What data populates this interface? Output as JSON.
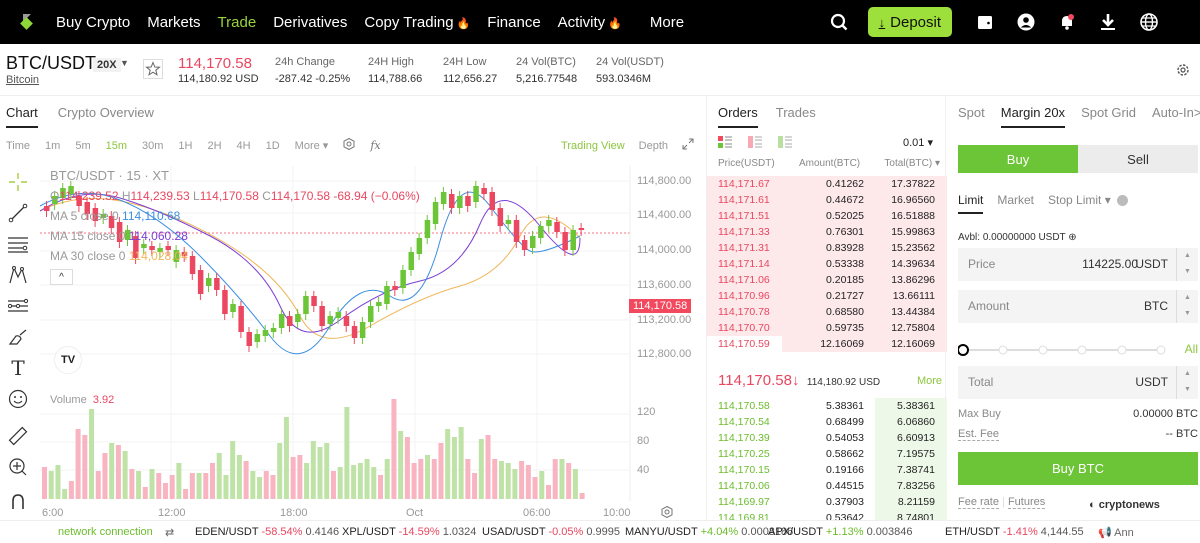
{
  "nav": {
    "items": [
      {
        "label": "Buy Crypto",
        "active": false,
        "hot": false
      },
      {
        "label": "Markets",
        "active": false,
        "hot": false
      },
      {
        "label": "Trade",
        "active": true,
        "hot": false
      },
      {
        "label": "Derivatives",
        "active": false,
        "hot": false
      },
      {
        "label": "Copy Trading",
        "active": false,
        "hot": true
      },
      {
        "label": "Finance",
        "active": false,
        "hot": false
      },
      {
        "label": "Activity",
        "active": false,
        "hot": true
      },
      {
        "label": "More",
        "active": false,
        "hot": false
      }
    ],
    "deposit_label": "Deposit",
    "accent": "#9ee03b"
  },
  "ticker": {
    "pair": "BTC/USDT",
    "leverage": "20X",
    "coin": "Bitcoin",
    "last_price": "114,170.58",
    "last_usd": "114,180.92 USD",
    "stats": [
      {
        "label": "24h Change",
        "value": "-287.42 -0.25%",
        "neg": true
      },
      {
        "label": "24H High",
        "value": "114,788.66"
      },
      {
        "label": "24H Low",
        "value": "112,656.27"
      },
      {
        "label": "24 Vol(BTC)",
        "value": "5,216.77548"
      },
      {
        "label": "24 Vol(USDT)",
        "value": "593.0346M"
      }
    ]
  },
  "chart_panel": {
    "tabs": [
      "Chart",
      "Crypto Overview"
    ],
    "intervals": [
      "Time",
      "1m",
      "5m",
      "15m",
      "30m",
      "1H",
      "2H",
      "4H",
      "1D",
      "More ▾"
    ],
    "active_interval": "15m",
    "trading_view": "Trading View",
    "depth": "Depth",
    "title": "BTC/USDT · 15 · XT",
    "ohlc": {
      "o": "114,239.52",
      "h": "114,239.53",
      "l": "114,170.58",
      "c": "114,170.58",
      "chg": "-68.94 (−0.06%)"
    },
    "ma": [
      {
        "label": "MA 5 close 0",
        "value": "114,110.68",
        "color": "#3b8fe0"
      },
      {
        "label": "MA 15 close 0",
        "value": "114,060.28",
        "color": "#7b3fd6"
      },
      {
        "label": "MA 30 close 0",
        "value": "114,028.04",
        "color": "#f0b65a"
      }
    ],
    "price_axis": [
      "114,800.00",
      "114,400.00",
      "114,000.00",
      "113,600.00",
      "113,200.00",
      "112,800.00"
    ],
    "current_price_tag": "114,170.58",
    "volume_label": "Volume",
    "volume_value": "3.92",
    "volume_axis": [
      "120",
      "80",
      "40"
    ],
    "time_axis": [
      "6:00",
      "12:00",
      "18:00",
      "Oct",
      "06:00",
      "10:00"
    ]
  },
  "orderbook": {
    "tabs": [
      "Orders",
      "Trades"
    ],
    "precision": "0.01 ▾",
    "headers": {
      "price": "Price(USDT)",
      "amount": "Amount(BTC)",
      "total": "Total(BTC) ▾"
    },
    "asks": [
      [
        "114,171.67",
        "0.41262",
        "17.37822"
      ],
      [
        "114,171.61",
        "0.44672",
        "16.96560"
      ],
      [
        "114,171.51",
        "0.52025",
        "16.51888"
      ],
      [
        "114,171.33",
        "0.76301",
        "15.99863"
      ],
      [
        "114,171.31",
        "0.83928",
        "15.23562"
      ],
      [
        "114,171.14",
        "0.53338",
        "14.39634"
      ],
      [
        "114,171.06",
        "0.20185",
        "13.86296"
      ],
      [
        "114,170.96",
        "0.21727",
        "13.66111"
      ],
      [
        "114,170.78",
        "0.68580",
        "13.44384"
      ],
      [
        "114,170.70",
        "0.59735",
        "12.75804"
      ],
      [
        "114,170.59",
        "12.16069",
        "12.16069"
      ]
    ],
    "mid_price": "114,170.58↓",
    "mid_usd": "114,180.92 USD",
    "more": "More",
    "bids": [
      [
        "114,170.58",
        "5.38361",
        "5.38361"
      ],
      [
        "114,170.54",
        "0.68499",
        "6.06860"
      ],
      [
        "114,170.39",
        "0.54053",
        "6.60913"
      ],
      [
        "114,170.25",
        "0.58662",
        "7.19575"
      ],
      [
        "114,170.15",
        "0.19166",
        "7.38741"
      ],
      [
        "114,170.06",
        "0.44515",
        "7.83256"
      ],
      [
        "114,169.97",
        "0.37903",
        "8.21159"
      ],
      [
        "114,169.81",
        "0.53642",
        "8.74801"
      ]
    ]
  },
  "trade": {
    "tabs": [
      "Spot",
      "Margin 20x",
      "Spot Grid",
      "Auto-In>"
    ],
    "buy": "Buy",
    "sell": "Sell",
    "order_types": [
      "Limit",
      "Market",
      "Stop Limit ▾"
    ],
    "avbl": "Avbl: 0.00000000 USDT",
    "price": {
      "label": "Price",
      "value": "114225.00",
      "unit": "USDT"
    },
    "amount": {
      "label": "Amount",
      "value": "",
      "unit": "BTC"
    },
    "all": "All",
    "total": {
      "label": "Total",
      "value": "",
      "unit": "USDT"
    },
    "max_buy": {
      "label": "Max Buy",
      "value": "0.00000 BTC"
    },
    "est_fee": {
      "label": "Est. Fee",
      "value": "-- BTC"
    },
    "buy_btc": "Buy BTC",
    "fee_rate": "Fee rate",
    "futures": "Futures",
    "watermark": "cryptonews"
  },
  "footer": {
    "network": "network connection",
    "tickers": [
      {
        "pair": "EDEN/USDT",
        "chg": "-58.54%",
        "price": "0.4146",
        "neg": true
      },
      {
        "pair": "XPL/USDT",
        "chg": "-14.59%",
        "price": "1.0324",
        "neg": true
      },
      {
        "pair": "USAD/USDT",
        "chg": "-0.05%",
        "price": "0.9995",
        "neg": true
      },
      {
        "pair": "MANYU/USDT",
        "chg": "+4.04%",
        "price": "0.0003186",
        "neg": false
      },
      {
        "pair": "APX/USDT",
        "chg": "+1.13%",
        "price": "0.003846",
        "neg": false
      },
      {
        "pair": "ETH/USDT",
        "chg": "-1.41%",
        "price": "4,144.55",
        "neg": true
      }
    ],
    "announce": "Ann"
  }
}
